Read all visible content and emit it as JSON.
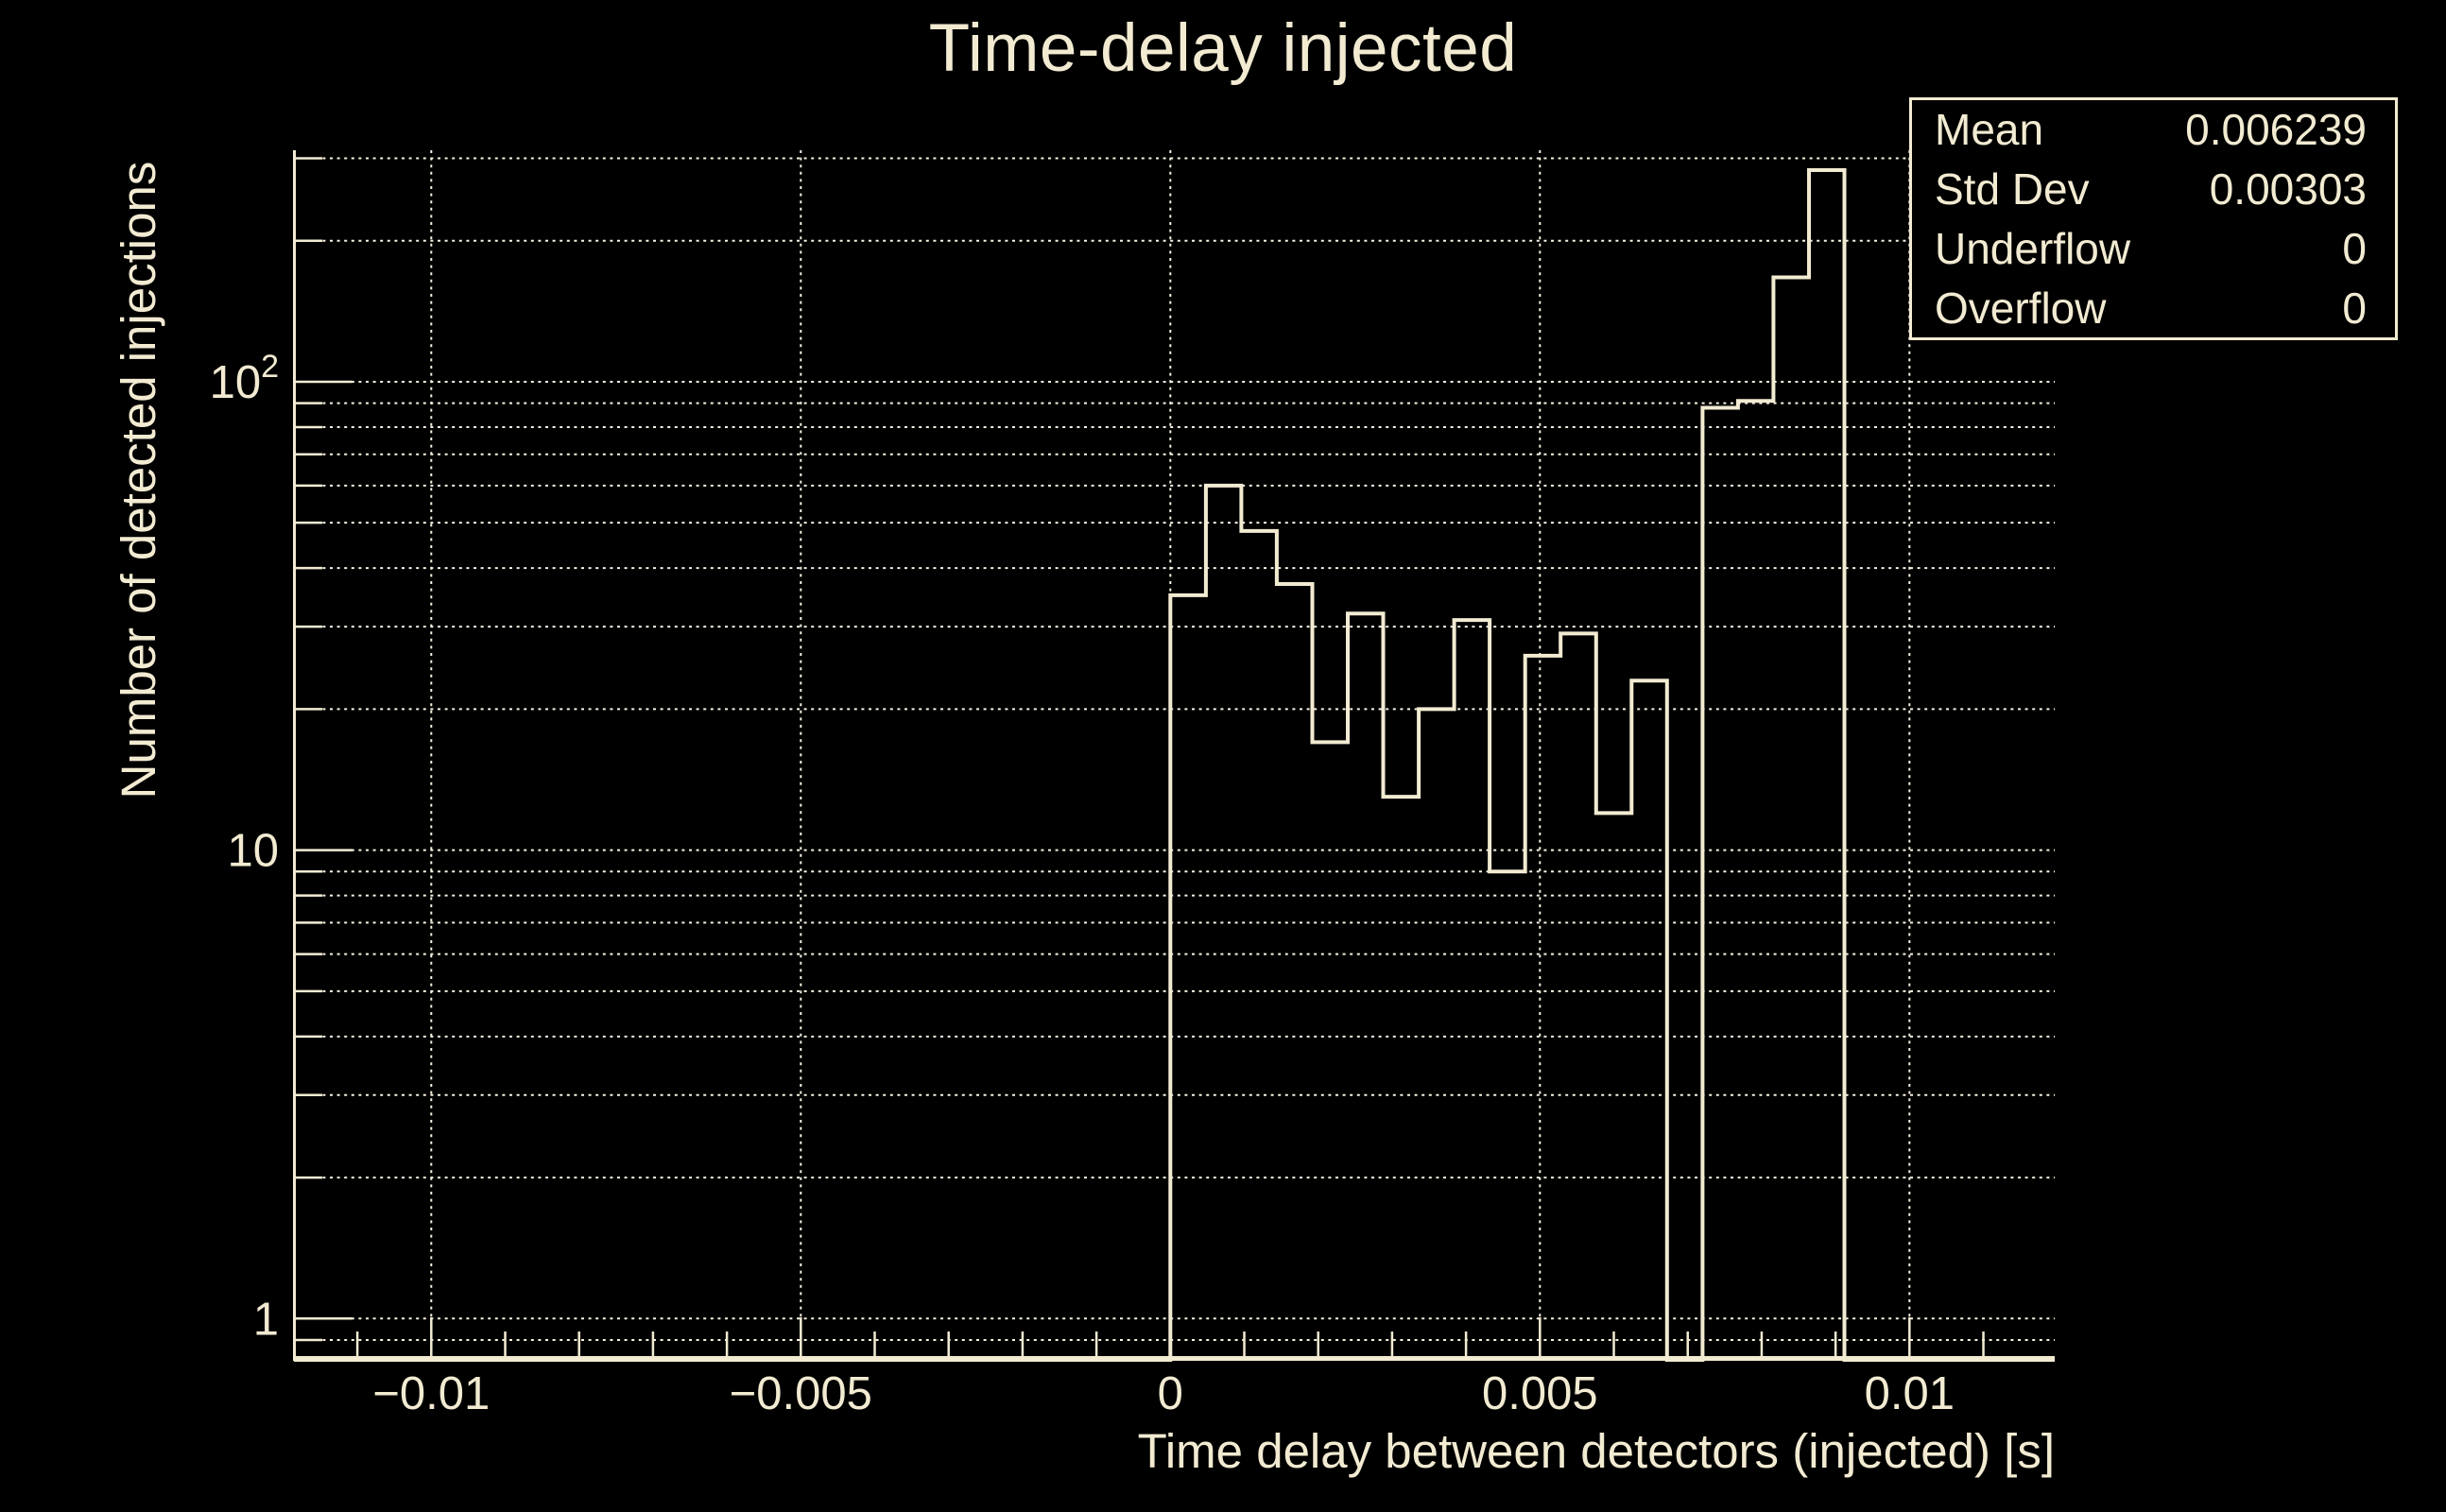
{
  "colors": {
    "background": "#000000",
    "foreground": "#f2ebd2",
    "grid": "#f7f2e2"
  },
  "chart_data": {
    "type": "bar",
    "subtype": "step-histogram",
    "title": "Time-delay injected",
    "xlabel": "Time delay between detectors (injected) [s]",
    "ylabel": "Number of detected injections",
    "yscale": "log",
    "grid": true,
    "xlim": [
      -0.011858,
      0.011965
    ],
    "ylim": [
      0.82,
      312
    ],
    "bin_start": 0.0,
    "bin_width": 0.00048,
    "counts": [
      35,
      60,
      48,
      37,
      17,
      32,
      13,
      20,
      31,
      9,
      26,
      29,
      12,
      23,
      0,
      88,
      91,
      167,
      283
    ],
    "x_major_ticks": [
      -0.01,
      -0.005,
      0,
      0.005,
      0.01
    ],
    "x_major_labels": [
      "−0.01",
      "−0.005",
      "0",
      "0.005",
      "0.01"
    ],
    "x_minor_step": 0.001,
    "y_major_ticks": [
      1,
      10,
      100
    ],
    "y_major_labels": [
      {
        "value": 1,
        "base": "1",
        "sup": ""
      },
      {
        "value": 10,
        "base": "10",
        "sup": ""
      },
      {
        "value": 100,
        "base": "10",
        "sup": "2"
      }
    ]
  },
  "stats_box": {
    "rows": [
      {
        "label": "Mean",
        "value": "0.006239"
      },
      {
        "label": "Std Dev",
        "value": "0.00303"
      },
      {
        "label": "Underflow",
        "value": "0"
      },
      {
        "label": "Overflow",
        "value": "0"
      }
    ]
  }
}
